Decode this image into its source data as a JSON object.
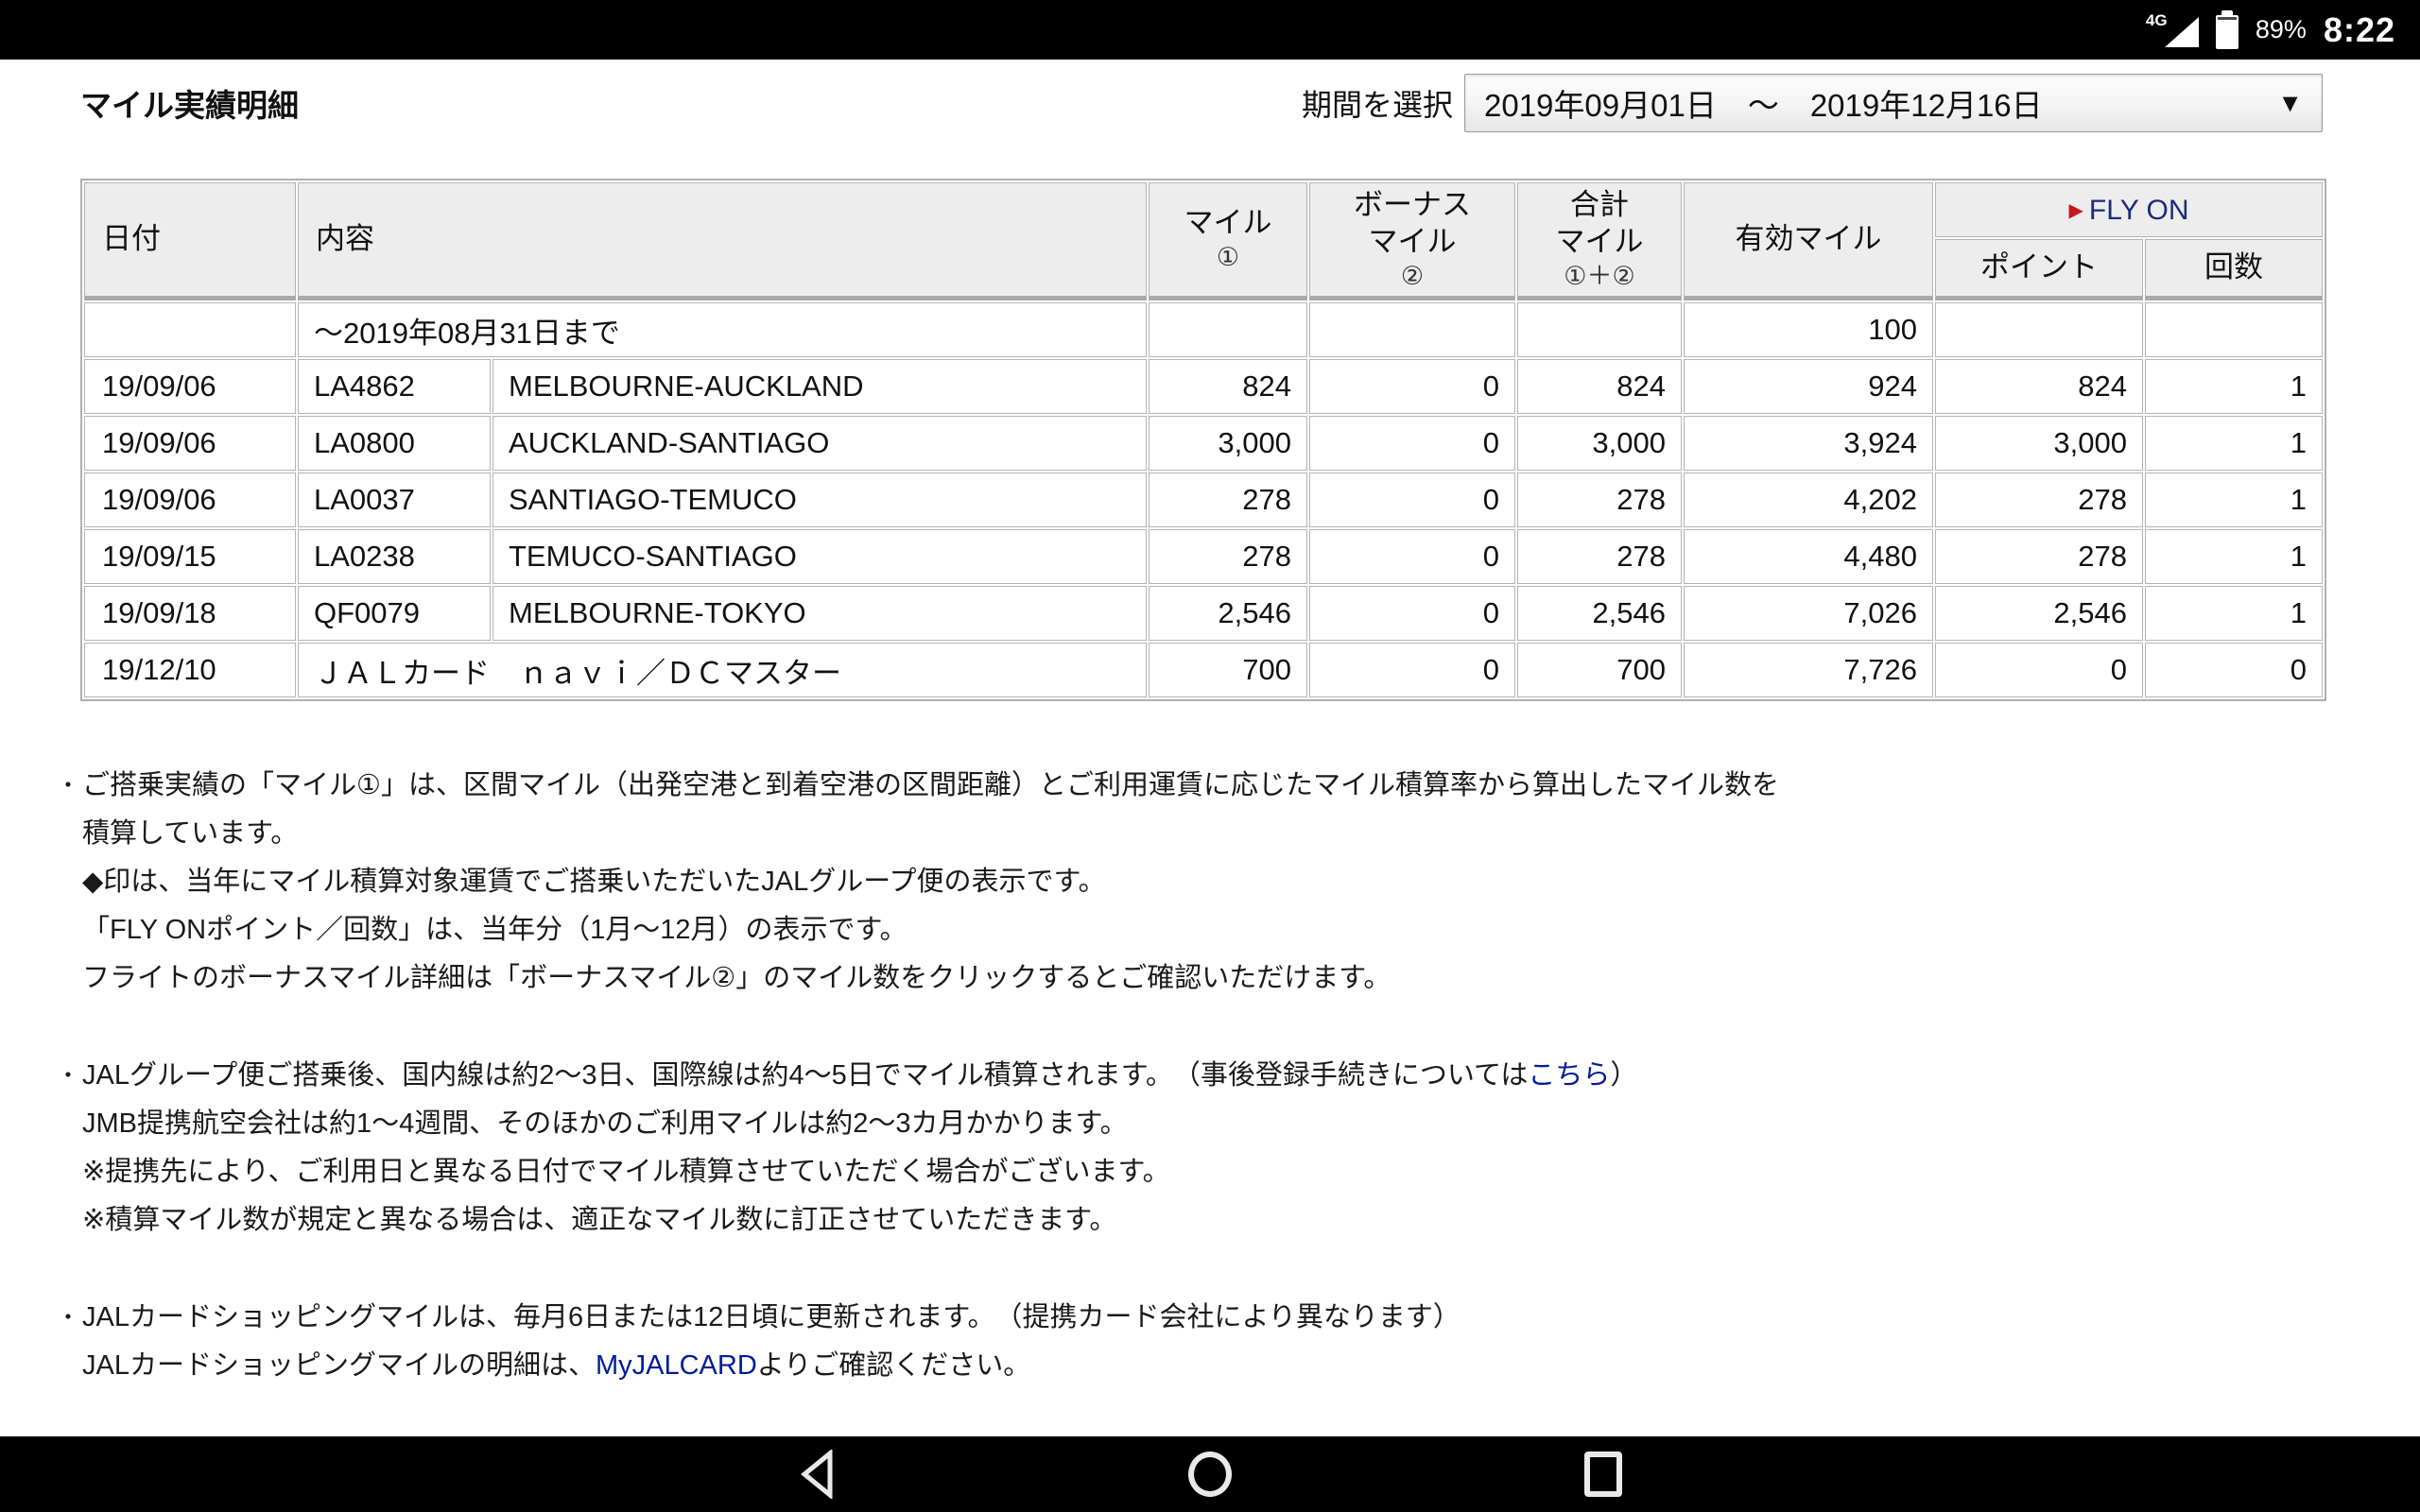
{
  "status_bar": {
    "network": "4G",
    "battery_percent": "89%",
    "time": "8:22"
  },
  "header": {
    "title": "マイル実績明細",
    "period_label": "期間を選択",
    "period_value": "2019年09月01日　～　2019年12月16日",
    "dropdown_arrow": "▼"
  },
  "colors": {
    "flyon_text": "#1a2b7e",
    "flyon_marker": "#c8161d",
    "link": "#001a9c",
    "header_bg": "#ededed"
  },
  "table": {
    "headers": {
      "date": "日付",
      "content": "内容",
      "mile_line1": "マイル",
      "mile_line2": "①",
      "bonus_line1": "ボーナス",
      "bonus_line2": "マイル",
      "bonus_line3": "②",
      "total_line1": "合計",
      "total_line2": "マイル",
      "total_line3": "①＋②",
      "valid": "有効マイル",
      "flyon_marker": "▶",
      "flyon": "FLY ON",
      "point": "ポイント",
      "count": "回数"
    },
    "rows": [
      {
        "date": "",
        "content": "～2019年08月31日まで",
        "mile": "",
        "bonus": "",
        "total": "",
        "valid": "100",
        "point": "",
        "count": ""
      },
      {
        "date": "19/09/06",
        "flight": "LA4862",
        "route": "MELBOURNE-AUCKLAND",
        "mile": "824",
        "bonus": "0",
        "total": "824",
        "valid": "924",
        "point": "824",
        "count": "1"
      },
      {
        "date": "19/09/06",
        "flight": "LA0800",
        "route": "AUCKLAND-SANTIAGO",
        "mile": "3,000",
        "bonus": "0",
        "total": "3,000",
        "valid": "3,924",
        "point": "3,000",
        "count": "1"
      },
      {
        "date": "19/09/06",
        "flight": "LA0037",
        "route": "SANTIAGO-TEMUCO",
        "mile": "278",
        "bonus": "0",
        "total": "278",
        "valid": "4,202",
        "point": "278",
        "count": "1"
      },
      {
        "date": "19/09/15",
        "flight": "LA0238",
        "route": "TEMUCO-SANTIAGO",
        "mile": "278",
        "bonus": "0",
        "total": "278",
        "valid": "4,480",
        "point": "278",
        "count": "1"
      },
      {
        "date": "19/09/18",
        "flight": "QF0079",
        "route": "MELBOURNE-TOKYO",
        "mile": "2,546",
        "bonus": "0",
        "total": "2,546",
        "valid": "7,026",
        "point": "2,546",
        "count": "1"
      },
      {
        "date": "19/12/10",
        "content": "ＪＡＬカード　ｎａｖｉ／ＤＣマスター",
        "mile": "700",
        "bonus": "0",
        "total": "700",
        "valid": "7,726",
        "point": "0",
        "count": "0"
      }
    ]
  },
  "notes_section": {
    "bullet_char": "・",
    "notes": [
      {
        "lines": [
          [
            {
              "t": "ご搭乗実績の「マイル①」は、区間マイル（出発空港と到着空港の区間距離）とご利用運賃に応じたマイル積算率から算出したマイル数を"
            }
          ],
          [
            {
              "t": "積算しています。"
            }
          ],
          [
            {
              "t": "◆印は、当年にマイル積算対象運賃でご搭乗いただいたJALグループ便の表示です。"
            }
          ],
          [
            {
              "t": "「FLY ONポイント／回数」は、当年分（1月～12月）の表示です。"
            }
          ],
          [
            {
              "t": "フライトのボーナスマイル詳細は「ボーナスマイル②」のマイル数をクリックするとご確認いただけます。"
            }
          ]
        ]
      },
      {
        "lines": [
          [
            {
              "t": "JALグループ便ご搭乗後、国内線は約2～3日、国際線は約4～5日でマイル積算されます。　（事後登録手続きについては"
            },
            {
              "t": "こちら",
              "link": true
            },
            {
              "t": "）"
            }
          ],
          [
            {
              "t": "JMB提携航空会社は約1～4週間、そのほかのご利用マイルは約2～3カ月かかります。"
            }
          ],
          [
            {
              "t": "※提携先により、ご利用日と異なる日付でマイル積算させていただく場合がございます。"
            }
          ],
          [
            {
              "t": "※積算マイル数が規定と異なる場合は、適正なマイル数に訂正させていただきます。"
            }
          ]
        ]
      },
      {
        "lines": [
          [
            {
              "t": "JALカードショッピングマイルは、毎月6日または12日頃に更新されます。　（提携カード会社により異なります）"
            }
          ],
          [
            {
              "t": "JALカードショッピングマイルの明細は、"
            },
            {
              "t": "MyJALCARD",
              "link": true
            },
            {
              "t": "よりご確認ください。"
            }
          ]
        ]
      }
    ]
  },
  "nav_bar": {
    "icons": {
      "back": "back-triangle",
      "home": "home-circle",
      "recents": "recents-square"
    }
  }
}
